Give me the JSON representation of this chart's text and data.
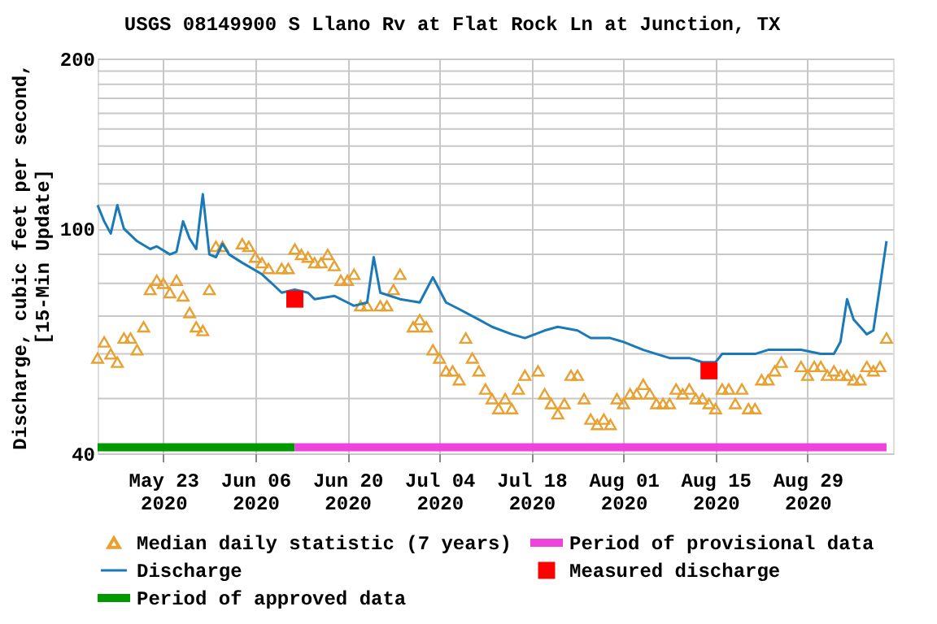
{
  "chart_data": {
    "type": "line",
    "title": "USGS 08149900 S Llano Rv at Flat Rock Ln at Junction, TX",
    "ylabel": "Discharge, cubic feet per second,\n[15-Min Update]",
    "log": "y",
    "grid": true,
    "legend": "bottom",
    "xlim": [
      "2020-05-13",
      "2020-09-11"
    ],
    "xticks": [
      {
        "value": "2020-05-23",
        "label": "May 23\n2020"
      },
      {
        "value": "2020-06-06",
        "label": "Jun 06\n2020"
      },
      {
        "value": "2020-06-20",
        "label": "Jun 20\n2020"
      },
      {
        "value": "2020-07-04",
        "label": "Jul 04\n2020"
      },
      {
        "value": "2020-07-18",
        "label": "Jul 18\n2020"
      },
      {
        "value": "2020-08-01",
        "label": "Aug 01\n2020"
      },
      {
        "value": "2020-08-15",
        "label": "Aug 15\n2020"
      },
      {
        "value": "2020-08-29",
        "label": "Aug 29\n2020"
      }
    ],
    "ylim": [
      40,
      200
    ],
    "yticks": [
      40,
      {
        "value": 50,
        "label": null
      },
      {
        "value": 60,
        "label": null
      },
      {
        "value": 70,
        "label": null
      },
      {
        "value": 80,
        "label": null
      },
      {
        "value": 90,
        "label": null
      },
      100,
      {
        "value": 110,
        "label": null
      },
      {
        "value": 120,
        "label": null
      },
      {
        "value": 130,
        "label": null
      },
      {
        "value": 140,
        "label": null
      },
      {
        "value": 150,
        "label": null
      },
      {
        "value": 160,
        "label": null
      },
      {
        "value": 170,
        "label": null
      },
      {
        "value": 180,
        "label": null
      },
      {
        "value": 190,
        "label": null
      },
      200
    ],
    "series": [
      {
        "name": "Median daily statistic (7 years)",
        "type": "scatter",
        "marker": "triangle",
        "color": "#e8a030",
        "x": [
          "2020-05-13",
          "2020-05-14",
          "2020-05-15",
          "2020-05-16",
          "2020-05-17",
          "2020-05-18",
          "2020-05-19",
          "2020-05-20",
          "2020-05-21",
          "2020-05-22",
          "2020-05-23",
          "2020-05-24",
          "2020-05-25",
          "2020-05-26",
          "2020-05-27",
          "2020-05-28",
          "2020-05-29",
          "2020-05-30",
          "2020-05-31",
          "2020-06-01",
          "2020-06-04",
          "2020-06-05",
          "2020-06-06",
          "2020-06-07",
          "2020-06-08",
          "2020-06-10",
          "2020-06-11",
          "2020-06-12",
          "2020-06-13",
          "2020-06-14",
          "2020-06-15",
          "2020-06-16",
          "2020-06-17",
          "2020-06-18",
          "2020-06-19",
          "2020-06-20",
          "2020-06-21",
          "2020-06-22",
          "2020-06-23",
          "2020-06-25",
          "2020-06-26",
          "2020-06-27",
          "2020-06-28",
          "2020-06-30",
          "2020-07-01",
          "2020-07-02",
          "2020-07-03",
          "2020-07-04",
          "2020-07-05",
          "2020-07-06",
          "2020-07-07",
          "2020-07-08",
          "2020-07-09",
          "2020-07-10",
          "2020-07-11",
          "2020-07-12",
          "2020-07-13",
          "2020-07-14",
          "2020-07-15",
          "2020-07-16",
          "2020-07-17",
          "2020-07-19",
          "2020-07-20",
          "2020-07-21",
          "2020-07-22",
          "2020-07-23",
          "2020-07-24",
          "2020-07-25",
          "2020-07-26",
          "2020-07-27",
          "2020-07-28",
          "2020-07-29",
          "2020-07-30",
          "2020-07-31",
          "2020-08-01",
          "2020-08-02",
          "2020-08-03",
          "2020-08-04",
          "2020-08-05",
          "2020-08-06",
          "2020-08-07",
          "2020-08-08",
          "2020-08-09",
          "2020-08-10",
          "2020-08-11",
          "2020-08-12",
          "2020-08-13",
          "2020-08-14",
          "2020-08-15",
          "2020-08-16",
          "2020-08-17",
          "2020-08-18",
          "2020-08-19",
          "2020-08-20",
          "2020-08-21",
          "2020-08-22",
          "2020-08-23",
          "2020-08-24",
          "2020-08-25",
          "2020-08-28",
          "2020-08-29",
          "2020-08-30",
          "2020-08-31",
          "2020-09-01",
          "2020-09-02",
          "2020-09-03",
          "2020-09-04",
          "2020-09-05",
          "2020-09-06",
          "2020-09-07",
          "2020-09-08",
          "2020-09-09",
          "2020-09-10"
        ],
        "values": [
          59,
          63,
          60,
          58,
          64,
          64,
          61,
          67,
          78,
          81,
          80,
          77,
          81,
          76,
          71,
          67,
          66,
          78,
          93,
          93,
          94,
          93,
          89,
          87,
          85,
          85,
          85,
          92,
          90,
          89,
          87,
          87,
          90,
          86,
          81,
          81,
          83,
          73,
          73,
          73,
          73,
          78,
          83,
          67,
          69,
          67,
          61,
          59,
          56,
          56,
          54,
          64,
          59,
          56,
          52,
          50,
          48,
          50,
          48,
          52,
          55,
          56,
          51,
          49,
          47,
          49,
          55,
          55,
          50,
          46,
          45,
          46,
          45,
          50,
          49,
          51,
          51,
          53,
          51,
          49,
          49,
          49,
          52,
          51,
          52,
          50,
          50,
          49,
          48,
          52,
          52,
          49,
          52,
          48,
          48,
          54,
          54,
          56,
          58,
          57,
          55,
          57,
          57,
          55,
          56,
          55,
          55,
          54,
          54,
          57,
          56,
          57,
          64
        ]
      },
      {
        "name": "Discharge",
        "type": "line",
        "marker": "none",
        "color": "#1a7ab8",
        "x": [
          "2020-05-13",
          "2020-05-14",
          "2020-05-15",
          "2020-05-16",
          "2020-05-17",
          "2020-05-19",
          "2020-05-21",
          "2020-05-22",
          "2020-05-24",
          "2020-05-25",
          "2020-05-26",
          "2020-05-27",
          "2020-05-28",
          "2020-05-29",
          "2020-05-30",
          "2020-05-31",
          "2020-06-01",
          "2020-06-02",
          "2020-06-04",
          "2020-06-07",
          "2020-06-09",
          "2020-06-10",
          "2020-06-12",
          "2020-06-14",
          "2020-06-15",
          "2020-06-18",
          "2020-06-20",
          "2020-06-21",
          "2020-06-23",
          "2020-06-24",
          "2020-06-25",
          "2020-06-28",
          "2020-07-01",
          "2020-07-03",
          "2020-07-05",
          "2020-07-07",
          "2020-07-10",
          "2020-07-12",
          "2020-07-15",
          "2020-07-17",
          "2020-07-20",
          "2020-07-22",
          "2020-07-25",
          "2020-07-27",
          "2020-07-30",
          "2020-08-01",
          "2020-08-04",
          "2020-08-06",
          "2020-08-08",
          "2020-08-11",
          "2020-08-13",
          "2020-08-15",
          "2020-08-16",
          "2020-08-18",
          "2020-08-21",
          "2020-08-23",
          "2020-08-26",
          "2020-08-28",
          "2020-08-31",
          "2020-09-02",
          "2020-09-03",
          "2020-09-04",
          "2020-09-05",
          "2020-09-06",
          "2020-09-07",
          "2020-09-08",
          "2020-09-09",
          "2020-09-10"
        ],
        "values": [
          110,
          103,
          98,
          110,
          100,
          95,
          92,
          93,
          90,
          91,
          103,
          96,
          92,
          115,
          90,
          89,
          94,
          90,
          87,
          83,
          79,
          77,
          78,
          77,
          75,
          76,
          74,
          73,
          74,
          89,
          77,
          75,
          74,
          82,
          74,
          72,
          69,
          67,
          65,
          64,
          66,
          67,
          66,
          64,
          64,
          63,
          61,
          60,
          59,
          59,
          58,
          58,
          60,
          60,
          60,
          61,
          61,
          61,
          60,
          60,
          63,
          75,
          69,
          67,
          65,
          66,
          79,
          95
        ]
      },
      {
        "name": "Measured discharge",
        "type": "scatter",
        "marker": "square",
        "color": "#ff0000",
        "x": [
          "2020-06-12",
          "2020-08-14"
        ],
        "values": [
          75,
          56
        ]
      },
      {
        "name": "Period of approved data",
        "type": "line",
        "marker": "none",
        "color": "#009900",
        "x": [
          "2020-05-13",
          "2020-06-12"
        ],
        "values": [
          41,
          41
        ]
      },
      {
        "name": "Period of provisional data",
        "type": "line",
        "marker": "none",
        "color": "#ee44dd",
        "x": [
          "2020-06-12",
          "2020-09-10"
        ],
        "values": [
          41,
          41
        ]
      }
    ]
  }
}
